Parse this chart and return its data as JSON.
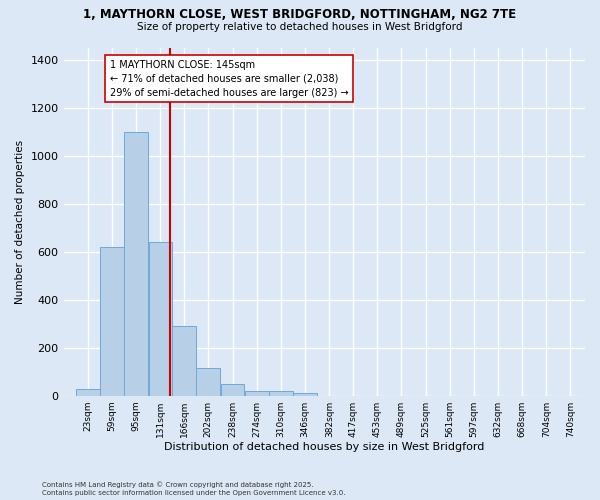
{
  "title_line1": "1, MAYTHORN CLOSE, WEST BRIDGFORD, NOTTINGHAM, NG2 7TE",
  "title_line2": "Size of property relative to detached houses in West Bridgford",
  "xlabel": "Distribution of detached houses by size in West Bridgford",
  "ylabel": "Number of detached properties",
  "bin_centers": [
    23,
    59,
    95,
    131,
    166,
    202,
    238,
    274,
    310,
    346,
    382,
    417,
    453,
    489,
    525,
    561,
    597,
    632,
    668,
    704,
    740
  ],
  "counts": [
    30,
    620,
    1100,
    640,
    290,
    115,
    50,
    20,
    20,
    10,
    0,
    0,
    0,
    0,
    0,
    0,
    0,
    0,
    0,
    0,
    0
  ],
  "bar_color": "#b8cfe8",
  "bar_edge_color": "#6fa8d8",
  "property_size": 145,
  "vline_color": "#cc0000",
  "annotation_text": "1 MAYTHORN CLOSE: 145sqm\n← 71% of detached houses are smaller (2,038)\n29% of semi-detached houses are larger (823) →",
  "annotation_box_color": "white",
  "annotation_box_edge_color": "#cc0000",
  "ylim": [
    0,
    1450
  ],
  "yticks": [
    0,
    200,
    400,
    600,
    800,
    1000,
    1200,
    1400
  ],
  "footnote_line1": "Contains HM Land Registry data © Crown copyright and database right 2025.",
  "footnote_line2": "Contains public sector information licensed under the Open Government Licence v3.0.",
  "background_color": "#dce8f5",
  "plot_background_color": "#dce8f5",
  "grid_color": "white",
  "tick_labels": [
    "23sqm",
    "59sqm",
    "95sqm",
    "131sqm",
    "166sqm",
    "202sqm",
    "238sqm",
    "274sqm",
    "310sqm",
    "346sqm",
    "382sqm",
    "417sqm",
    "453sqm",
    "489sqm",
    "525sqm",
    "561sqm",
    "597sqm",
    "632sqm",
    "668sqm",
    "704sqm",
    "740sqm"
  ]
}
